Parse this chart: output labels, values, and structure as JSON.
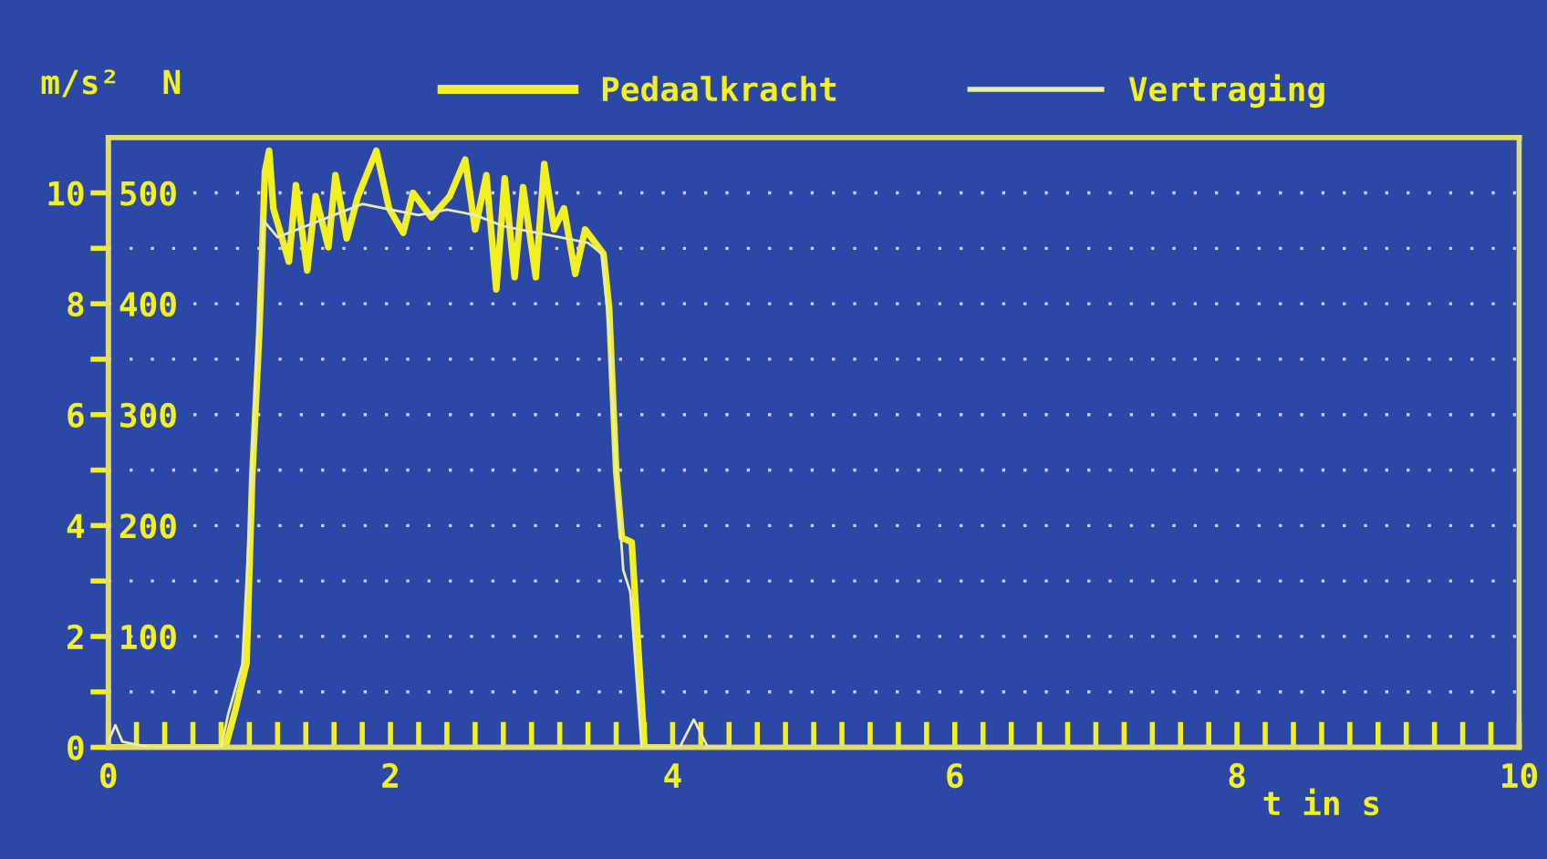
{
  "chart_data": {
    "type": "line",
    "xlabel": "t in s",
    "ylabel": "N",
    "y2label": "m/s²",
    "legend": "top",
    "grid": "y",
    "line_style": "solid",
    "marker": "none",
    "xlim": [
      0,
      10
    ],
    "xticks": [
      0,
      {
        "value": 0.2,
        "label": null
      },
      {
        "value": 0.4,
        "label": null
      },
      {
        "value": 0.6,
        "label": null
      },
      {
        "value": 0.8,
        "label": null
      },
      {
        "value": 1,
        "label": null
      },
      {
        "value": 1.2,
        "label": null
      },
      {
        "value": 1.4,
        "label": null
      },
      {
        "value": 1.6,
        "label": null
      },
      {
        "value": 1.8,
        "label": null
      },
      2,
      {
        "value": 2.2,
        "label": null
      },
      {
        "value": 2.4,
        "label": null
      },
      {
        "value": 2.6,
        "label": null
      },
      {
        "value": 2.8,
        "label": null
      },
      {
        "value": 3,
        "label": null
      },
      {
        "value": 3.2,
        "label": null
      },
      {
        "value": 3.4,
        "label": null
      },
      {
        "value": 3.6,
        "label": null
      },
      {
        "value": 3.8,
        "label": null
      },
      4,
      {
        "value": 4.2,
        "label": null
      },
      {
        "value": 4.4,
        "label": null
      },
      {
        "value": 4.6,
        "label": null
      },
      {
        "value": 4.8,
        "label": null
      },
      {
        "value": 5,
        "label": null
      },
      {
        "value": 5.2,
        "label": null
      },
      {
        "value": 5.4,
        "label": null
      },
      {
        "value": 5.6,
        "label": null
      },
      {
        "value": 5.8,
        "label": null
      },
      6,
      {
        "value": 6.2,
        "label": null
      },
      {
        "value": 6.4,
        "label": null
      },
      {
        "value": 6.6,
        "label": null
      },
      {
        "value": 6.8,
        "label": null
      },
      {
        "value": 7,
        "label": null
      },
      {
        "value": 7.2,
        "label": null
      },
      {
        "value": 7.4,
        "label": null
      },
      {
        "value": 7.6,
        "label": null
      },
      {
        "value": 7.8,
        "label": null
      },
      8,
      {
        "value": 8.2,
        "label": null
      },
      {
        "value": 8.4,
        "label": null
      },
      {
        "value": 8.6,
        "label": null
      },
      {
        "value": 8.8,
        "label": null
      },
      {
        "value": 9,
        "label": null
      },
      {
        "value": 9.2,
        "label": null
      },
      {
        "value": 9.4,
        "label": null
      },
      {
        "value": 9.6,
        "label": null
      },
      {
        "value": 9.8,
        "label": null
      },
      10
    ],
    "ylim": [
      0,
      550
    ],
    "yticks": [
      {
        "value": 50,
        "label": null
      },
      100,
      {
        "value": 150,
        "label": null
      },
      200,
      {
        "value": 250,
        "label": null
      },
      300,
      {
        "value": 350,
        "label": null
      },
      400,
      {
        "value": 450,
        "label": null
      },
      500
    ],
    "y2lim": [
      0,
      11
    ],
    "y2ticks": [
      0,
      {
        "value": 1,
        "label": null
      },
      2,
      {
        "value": 3,
        "label": null
      },
      4,
      {
        "value": 5,
        "label": null
      },
      6,
      {
        "value": 7,
        "label": null
      },
      8,
      {
        "value": 9,
        "label": null
      },
      10
    ],
    "series": [
      {
        "name": "Pedaalkracht",
        "color": "#f2f020",
        "x": [
          0,
          0.5,
          0.83,
          0.9,
          0.98,
          1.02,
          1.07,
          1.11,
          1.14,
          1.17,
          1.28,
          1.33,
          1.41,
          1.47,
          1.56,
          1.61,
          1.69,
          1.77,
          1.9,
          1.99,
          2.09,
          2.16,
          2.29,
          2.42,
          2.53,
          2.6,
          2.68,
          2.75,
          2.81,
          2.88,
          2.94,
          3.03,
          3.09,
          3.16,
          3.23,
          3.31,
          3.38,
          3.51,
          3.55,
          3.6,
          3.64,
          3.71,
          3.8,
          4.0
        ],
        "values": [
          0,
          0,
          0,
          33,
          76,
          243,
          373,
          519,
          538,
          486,
          438,
          507,
          430,
          497,
          451,
          516,
          459,
          497,
          538,
          486,
          464,
          500,
          478,
          497,
          530,
          467,
          516,
          413,
          513,
          424,
          505,
          424,
          526,
          467,
          486,
          427,
          467,
          445,
          396,
          249,
          189,
          185,
          0,
          0
        ]
      },
      {
        "name": "Vertraging",
        "color": "#e8ecb0",
        "axis": "y2",
        "x": [
          0,
          0.05,
          0.1,
          0.3,
          0.8,
          0.85,
          0.95,
          1.0,
          1.05,
          1.1,
          1.2,
          1.4,
          1.6,
          1.8,
          2.0,
          2.2,
          2.4,
          2.6,
          2.8,
          3.0,
          3.2,
          3.4,
          3.5,
          3.55,
          3.6,
          3.65,
          3.7,
          3.78,
          4.05,
          4.15,
          4.25,
          4.4
        ],
        "values": [
          0.1,
          0.4,
          0.1,
          0,
          0,
          0.6,
          1.5,
          4,
          7,
          9.5,
          9.2,
          9.4,
          9.6,
          9.8,
          9.7,
          9.6,
          9.7,
          9.6,
          9.4,
          9.3,
          9.2,
          9.1,
          8.9,
          7.5,
          5,
          3.2,
          2.8,
          0,
          0,
          0.5,
          0,
          0
        ]
      }
    ]
  }
}
